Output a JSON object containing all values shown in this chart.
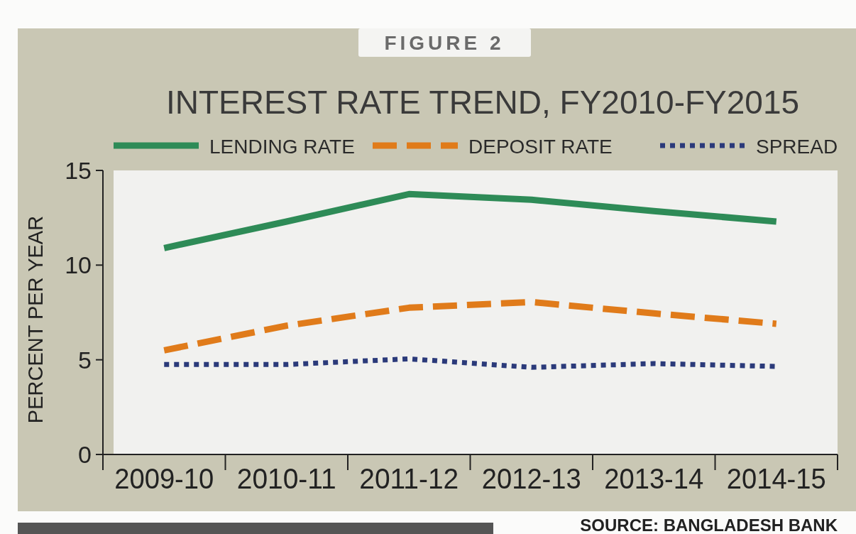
{
  "chart_data": {
    "type": "line",
    "title": "INTEREST RATE TREND, FY2010-FY2015",
    "subtitle": "FIGURE 2",
    "ylabel": "PERCENT PER YEAR",
    "categories": [
      "2009-10",
      "2010-11",
      "2011-12",
      "2012-13",
      "2013-14",
      "2014-15"
    ],
    "series": [
      {
        "name": "LENDING RATE",
        "color": "#2e8b57",
        "line_style": "solid",
        "values": [
          10.9,
          12.3,
          13.75,
          13.45,
          12.85,
          12.3
        ]
      },
      {
        "name": "DEPOSIT RATE",
        "color": "#e07b1a",
        "line_style": "dashed",
        "values": [
          5.5,
          6.8,
          7.75,
          8.05,
          7.45,
          6.9
        ]
      },
      {
        "name": "SPREAD",
        "color": "#2b3a7a",
        "line_style": "dotted",
        "values": [
          4.75,
          4.75,
          5.05,
          4.6,
          4.8,
          4.65
        ]
      }
    ],
    "ylim": [
      0,
      15
    ],
    "yticks": [
      0,
      5,
      10,
      15
    ],
    "legend": "top",
    "grid": false,
    "annotations": [
      "SOURCE: BANGLADESH BANK"
    ]
  }
}
